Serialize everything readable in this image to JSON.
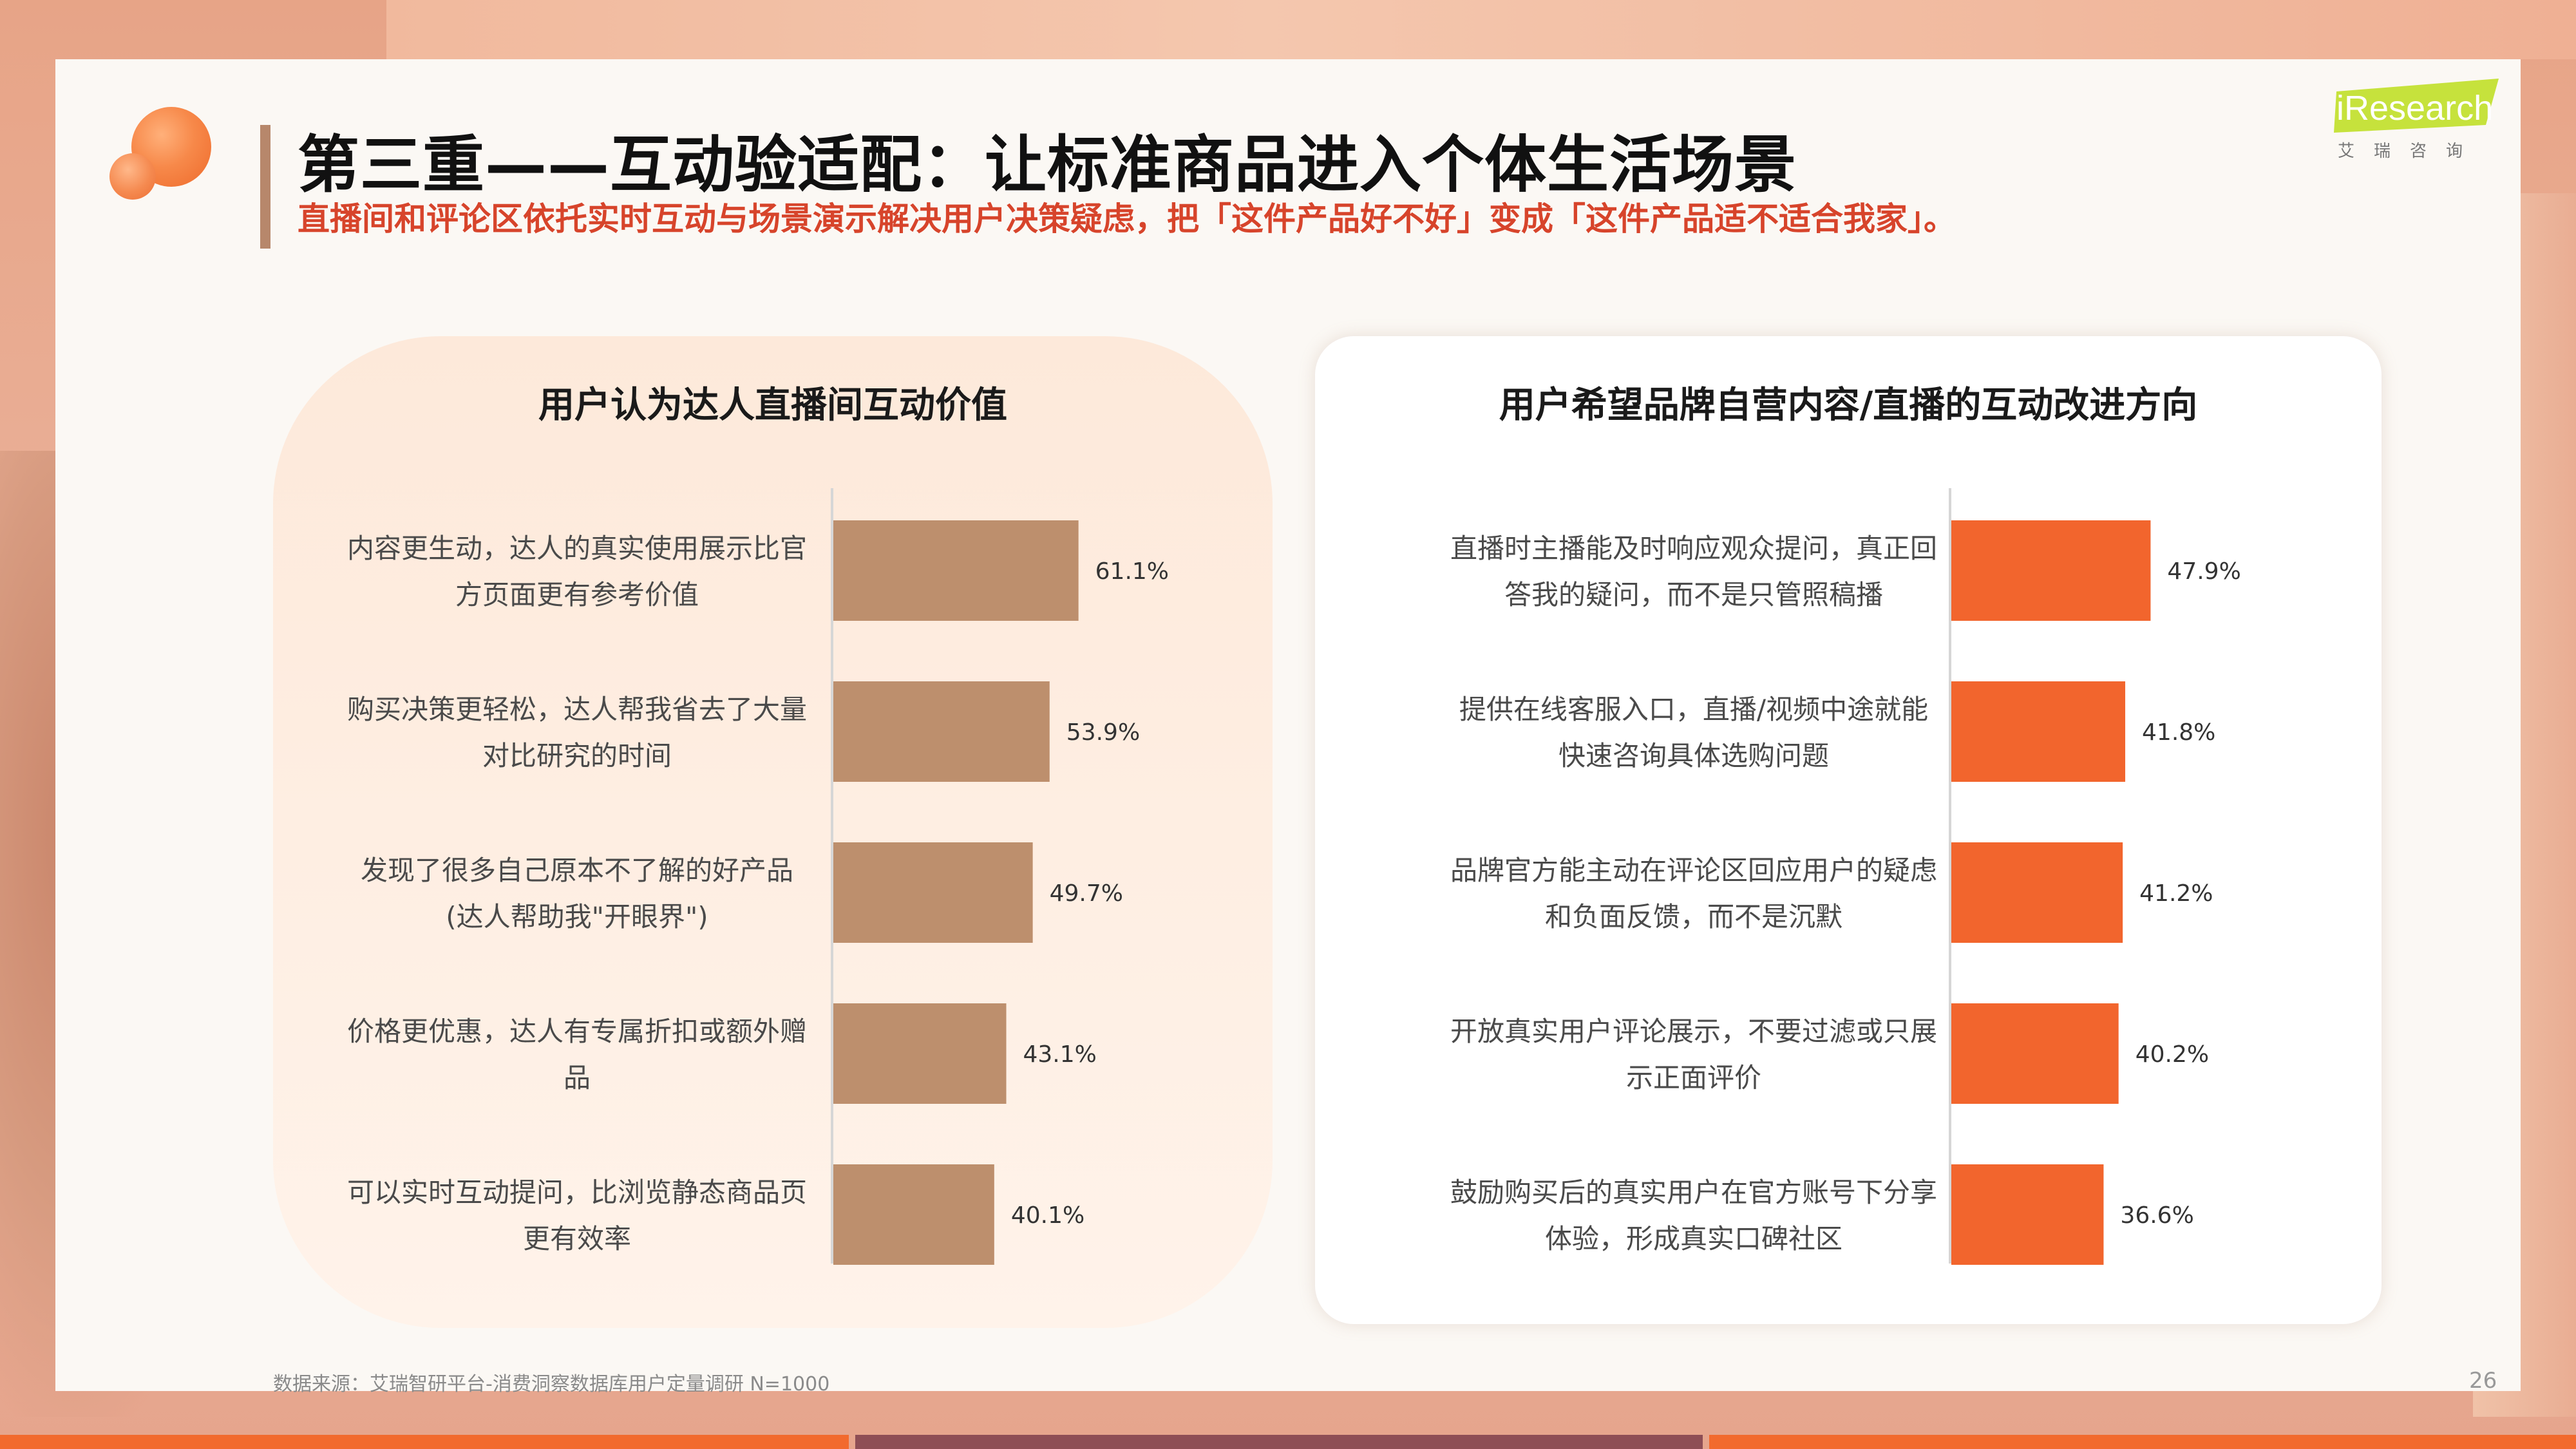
{
  "header": {
    "title": "第三重——互动验适配：让标准商品进入个体生活场景",
    "subtitle": "直播间和评论区依托实时互动与场景演示解决用户决策疑虑，把「这件产品好不好」变成「这件产品适不适合我家」。"
  },
  "brand": {
    "logo_text": "iResearch",
    "logo_subtext": "艾瑞咨询"
  },
  "footer": {
    "source": "数据来源：艾瑞智研平台-消费洞察数据库用户定量调研 N=1000",
    "page_number": "26"
  },
  "colors": {
    "accent_orange": "#F2652D",
    "bar_brown": "#BD8F6D",
    "title_red": "#D7442B",
    "logo_green": "#C6E23C"
  },
  "chart_data": [
    {
      "type": "bar",
      "orientation": "horizontal",
      "title": "用户认为达人直播间互动价值",
      "categories": [
        [
          "内容更生动，达人的真实使用展示比官",
          "方页面更有参考价值"
        ],
        [
          "购买决策更轻松，达人帮我省去了大量",
          "对比研究的时间"
        ],
        [
          "发现了很多自己原本不了解的好产品",
          "(达人帮助我\"开眼界\")"
        ],
        [
          "价格更优惠，达人有专属折扣或额外赠",
          "品"
        ],
        [
          "可以实时互动提问，比浏览静态商品页",
          "更有效率"
        ]
      ],
      "values": [
        61.1,
        53.9,
        49.7,
        43.1,
        40.1
      ],
      "value_labels": [
        "61.1%",
        "53.9%",
        "49.7%",
        "43.1%",
        "40.1%"
      ],
      "unit": "%",
      "color": "#BD8F6D",
      "grid": false
    },
    {
      "type": "bar",
      "orientation": "horizontal",
      "title": "用户希望品牌自营内容/直播的互动改进方向",
      "categories": [
        [
          "直播时主播能及时响应观众提问，真正回",
          "答我的疑问，而不是只管照稿播"
        ],
        [
          "提供在线客服入口，直播/视频中途就能",
          "快速咨询具体选购问题"
        ],
        [
          "品牌官方能主动在评论区回应用户的疑虑",
          "和负面反馈，而不是沉默"
        ],
        [
          "开放真实用户评论展示，不要过滤或只展",
          "示正面评价"
        ],
        [
          "鼓励购买后的真实用户在官方账号下分享",
          "体验，形成真实口碑社区"
        ]
      ],
      "values": [
        47.9,
        41.8,
        41.2,
        40.2,
        36.6
      ],
      "value_labels": [
        "47.9%",
        "41.8%",
        "41.2%",
        "40.2%",
        "36.6%"
      ],
      "unit": "%",
      "color": "#F2652D",
      "grid": false
    }
  ]
}
